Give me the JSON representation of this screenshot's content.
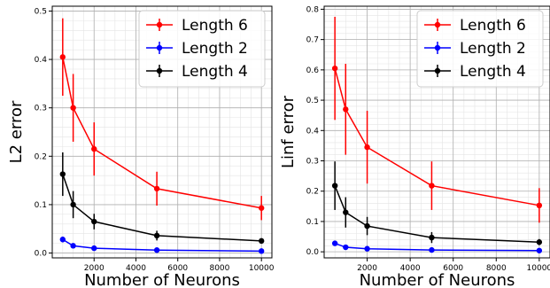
{
  "chart_data": [
    {
      "type": "line",
      "xlabel": "Number of Neurons",
      "ylabel": "L2 error",
      "xlim": [
        0,
        10500
      ],
      "ylim": [
        -0.01,
        0.51
      ],
      "xticks": [
        2000,
        4000,
        6000,
        8000,
        10000
      ],
      "xtick_labels": [
        "2000",
        "4000",
        "6000",
        "8000",
        "10000"
      ],
      "yticks": [
        0.0,
        0.1,
        0.2,
        0.3,
        0.4,
        0.5
      ],
      "ytick_labels": [
        "0.0",
        "0.1",
        "0.2",
        "0.3",
        "0.4",
        "0.5"
      ],
      "grid": true,
      "legend_position": "top-right",
      "series": [
        {
          "name": "Length 6",
          "color": "#ff0000",
          "x": [
            500,
            1000,
            2000,
            5000,
            10000
          ],
          "y": [
            0.405,
            0.3,
            0.215,
            0.133,
            0.093
          ],
          "err": [
            0.08,
            0.07,
            0.055,
            0.035,
            0.025
          ]
        },
        {
          "name": "Length 2",
          "color": "#0000ff",
          "x": [
            500,
            1000,
            2000,
            5000,
            10000
          ],
          "y": [
            0.028,
            0.015,
            0.01,
            0.006,
            0.004
          ],
          "err": [
            0.006,
            0.003,
            0.002,
            0.001,
            0.001
          ]
        },
        {
          "name": "Length 4",
          "color": "#000000",
          "x": [
            500,
            1000,
            2000,
            5000,
            10000
          ],
          "y": [
            0.163,
            0.1,
            0.065,
            0.036,
            0.025
          ],
          "err": [
            0.045,
            0.028,
            0.016,
            0.01,
            0.005
          ]
        }
      ]
    },
    {
      "type": "line",
      "xlabel": "Number of Neurons",
      "ylabel": "Linf error",
      "xlim": [
        0,
        10500
      ],
      "ylim": [
        -0.02,
        0.81
      ],
      "xticks": [
        2000,
        4000,
        6000,
        8000,
        10000
      ],
      "xtick_labels": [
        "2000",
        "4000",
        "6000",
        "8000",
        "10000"
      ],
      "yticks": [
        0.0,
        0.1,
        0.2,
        0.3,
        0.4,
        0.5,
        0.6,
        0.7,
        0.8
      ],
      "ytick_labels": [
        "0.0",
        "0.1",
        "0.2",
        "0.3",
        "0.4",
        "0.5",
        "0.6",
        "0.7",
        "0.8"
      ],
      "grid": true,
      "legend_position": "top-right",
      "series": [
        {
          "name": "Length 6",
          "color": "#ff0000",
          "x": [
            500,
            1000,
            2000,
            5000,
            10000
          ],
          "y": [
            0.605,
            0.47,
            0.345,
            0.218,
            0.153
          ],
          "err": [
            0.17,
            0.15,
            0.12,
            0.08,
            0.057
          ]
        },
        {
          "name": "Length 2",
          "color": "#0000ff",
          "x": [
            500,
            1000,
            2000,
            5000,
            10000
          ],
          "y": [
            0.028,
            0.015,
            0.01,
            0.006,
            0.004
          ],
          "err": [
            0.005,
            0.003,
            0.002,
            0.001,
            0.001
          ]
        },
        {
          "name": "Length 4",
          "color": "#000000",
          "x": [
            500,
            1000,
            2000,
            5000,
            10000
          ],
          "y": [
            0.218,
            0.13,
            0.085,
            0.047,
            0.032
          ],
          "err": [
            0.08,
            0.05,
            0.03,
            0.018,
            0.01
          ]
        }
      ]
    }
  ]
}
